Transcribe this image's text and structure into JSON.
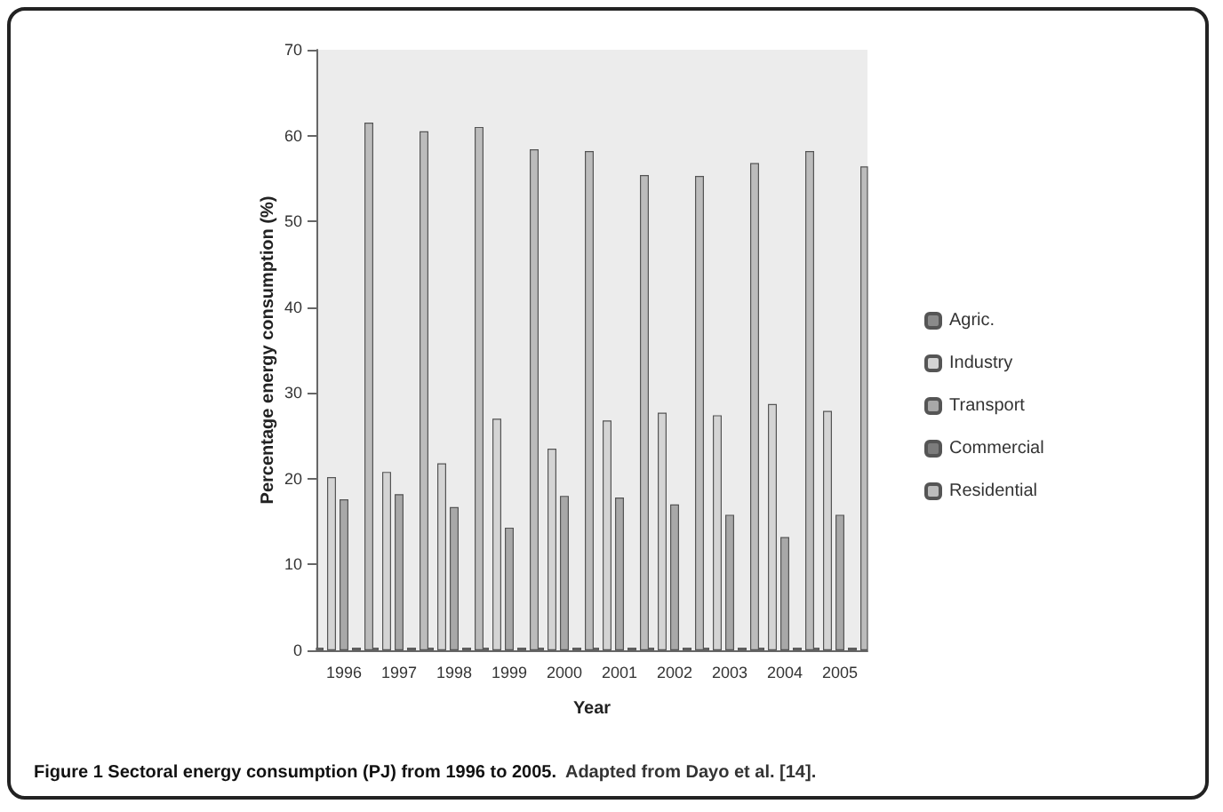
{
  "chart_data": {
    "type": "bar",
    "title": "Figure 1 Sectoral energy consumption (PJ) from 1996 to 2005.",
    "annotations": [
      "Adapted from Dayo et al. [14]."
    ],
    "xlabel": "Year",
    "ylabel": "Percentage energy consumption (%)",
    "categories": [
      "1996",
      "1997",
      "1998",
      "1999",
      "2000",
      "2001",
      "2002",
      "2003",
      "2004",
      "2005"
    ],
    "series": [
      {
        "name": "Agric.",
        "color": "#8a8a8a",
        "values": [
          0.3,
          0.3,
          0.3,
          0.3,
          0.3,
          0.3,
          0.3,
          0.3,
          0.3,
          0.3
        ]
      },
      {
        "name": "Industry",
        "color": "#d4d4d4",
        "values": [
          20.2,
          20.8,
          21.8,
          27,
          23.5,
          26.8,
          27.7,
          27.4,
          28.7,
          27.9
        ]
      },
      {
        "name": "Transport",
        "color": "#a8a8a8",
        "values": [
          17.6,
          18.2,
          16.7,
          14.3,
          18,
          17.8,
          17,
          15.8,
          13.2,
          15.8
        ]
      },
      {
        "name": "Commercial",
        "color": "#7c7c7c",
        "values": [
          0.3,
          0.3,
          0.3,
          0.3,
          0.3,
          0.3,
          0.3,
          0.3,
          0.3,
          0.3
        ]
      },
      {
        "name": "Residential",
        "color": "#bcbcbc",
        "values": [
          61.5,
          60.5,
          61,
          58.4,
          58.2,
          55.4,
          55.3,
          56.8,
          58.2,
          56.4
        ]
      }
    ],
    "ylim": [
      0,
      70
    ],
    "yticks": [
      0,
      10,
      20,
      30,
      40,
      50,
      60,
      70
    ],
    "grid": false,
    "legend": "right"
  }
}
